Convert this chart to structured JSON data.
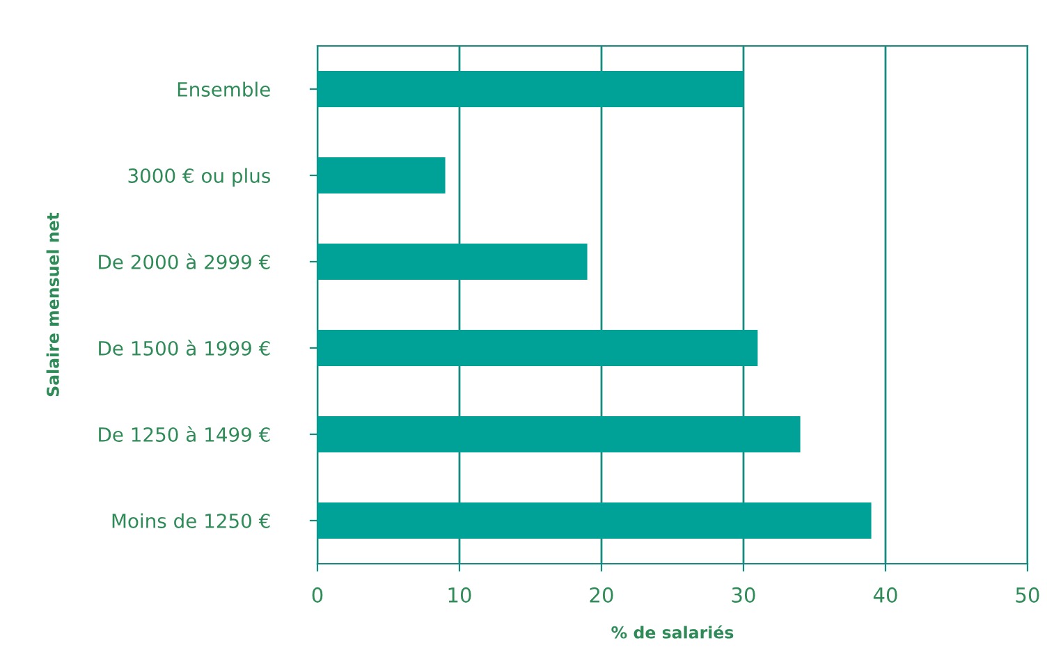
{
  "chart_data": {
    "type": "bar",
    "orientation": "horizontal",
    "categories": [
      "Ensemble",
      "3000 € ou plus",
      "De 2000 à 2999 €",
      "De 1500 à 1999 €",
      "De 1250 à 1499 €",
      "Moins de 1250 €"
    ],
    "values": [
      30,
      9,
      19,
      31,
      34,
      39
    ],
    "color": "#00a197",
    "xlim": [
      0,
      50
    ],
    "xticks": [
      0,
      10,
      20,
      30,
      40,
      50
    ],
    "grid": "x",
    "xlabel": "% de salariés",
    "ylabel": "Salaire mensuel net"
  }
}
